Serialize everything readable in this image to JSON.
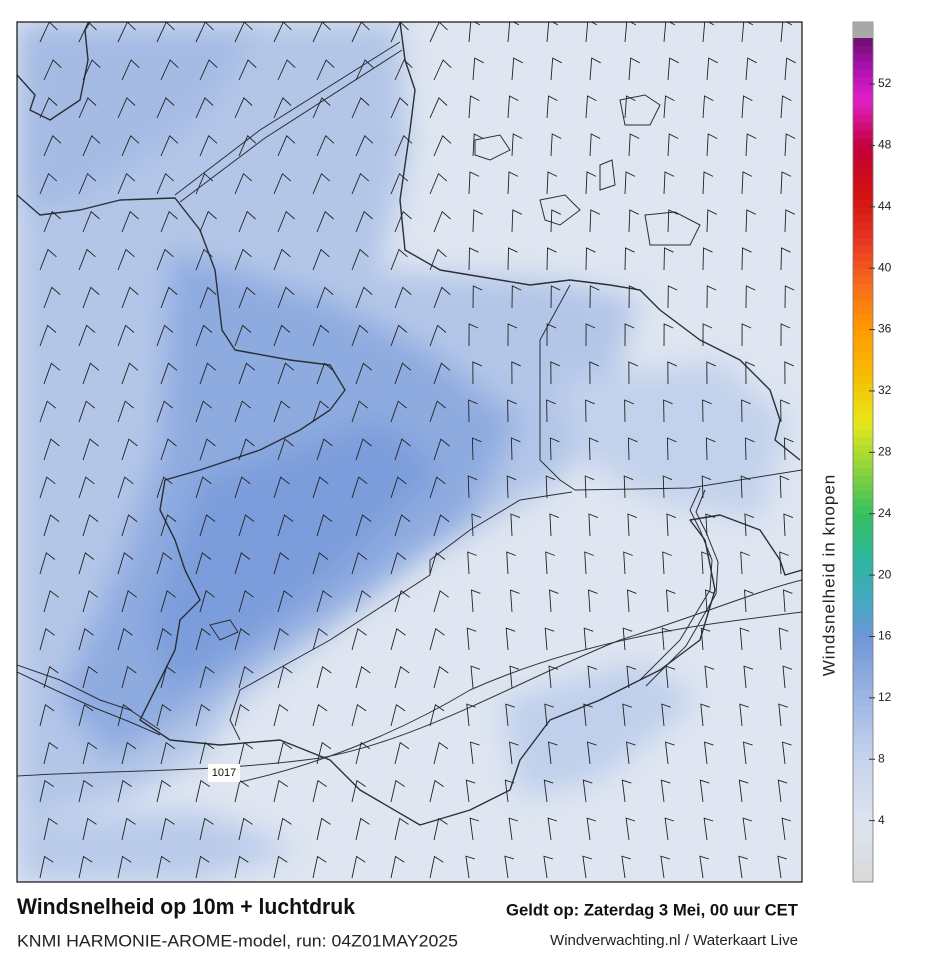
{
  "map": {
    "title": "Windsnelheid op 10m + luchtdruk",
    "valid_time": "Geldt op: Zaterdag 3 Mei, 00 uur CET",
    "model_run": "KNMI HARMONIE-AROME-model, run: 04Z01MAY2025",
    "credit": "Windverwachting.nl / Waterkaart Live",
    "isobar_label": "1017"
  },
  "colorbar": {
    "label": "Windsnelheid in knopen",
    "range": [
      0,
      55
    ],
    "ticks": [
      4,
      8,
      12,
      16,
      20,
      24,
      28,
      32,
      36,
      40,
      44,
      48,
      52
    ]
  }
}
